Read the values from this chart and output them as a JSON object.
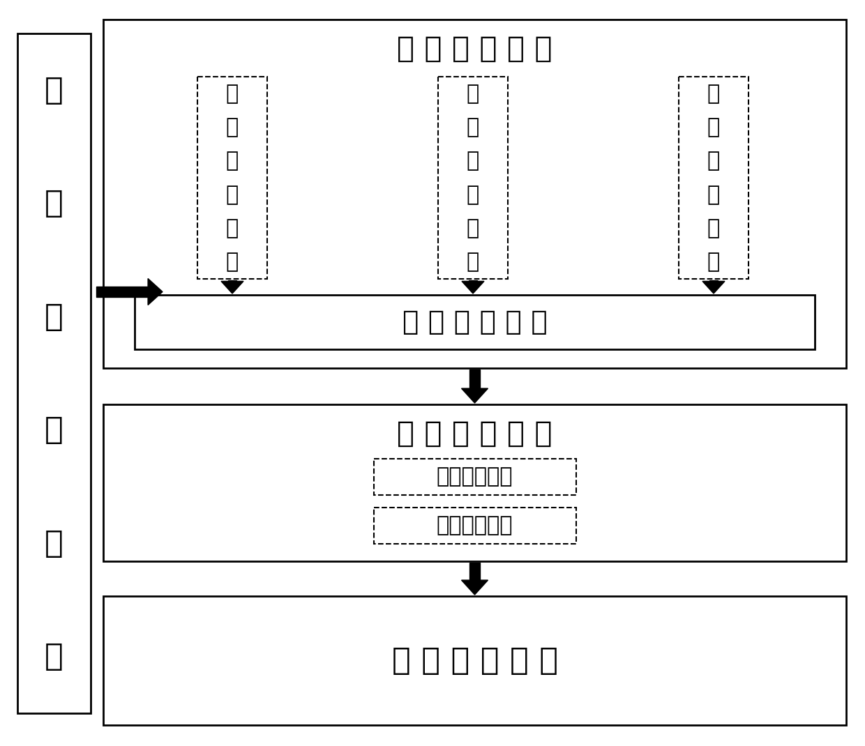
{
  "bg_color": "#ffffff",
  "left_chars": [
    "数",
    "据",
    "采",
    "集",
    "模",
    "块"
  ],
  "box1_label": "层 次 分 析 模 块",
  "sub_boxes": [
    [
      "滑",
      "坡",
      "成",
      "因",
      "模",
      "块"
    ],
    [
      "滑",
      "坡",
      "事",
      "故",
      "模",
      "块"
    ],
    [
      "滑",
      "坡",
      "损",
      "失",
      "模",
      "块"
    ]
  ],
  "relation_label": "关 联 分 析 模 块",
  "data_analysis_label": "数 据 分 析 模 块",
  "weight_label": "损失权重模块",
  "eval_label": "损失评价模块",
  "final_label": "损 失 评 价 模 块",
  "lw": 2.0
}
